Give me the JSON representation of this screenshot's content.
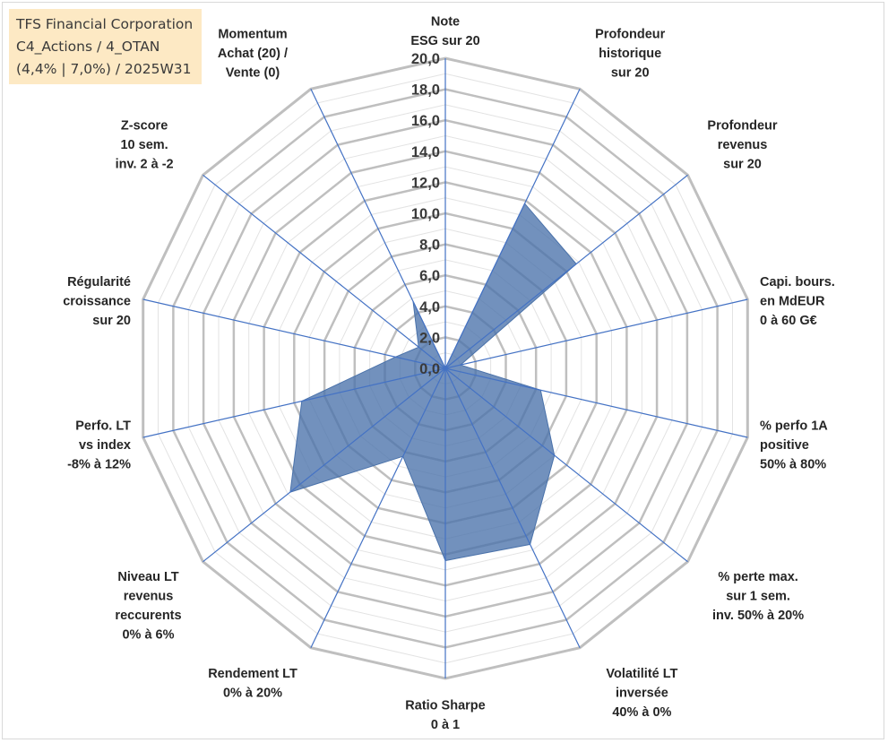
{
  "title_box": {
    "lines": [
      "TFS Financial Corporation",
      "C4_Actions / 4_OTAN",
      "(4,4% | 7,0%) / 2025W31"
    ]
  },
  "chart_data": {
    "type": "radar",
    "title": "",
    "rmin": 0,
    "rmax": 20,
    "step": 2,
    "tick_labels": [
      "0,0",
      "2,0",
      "4,0",
      "6,0",
      "8,0",
      "10,0",
      "12,0",
      "14,0",
      "16,0",
      "18,0",
      "20,0"
    ],
    "axes": [
      [
        "Note",
        "ESG sur 20"
      ],
      [
        "Profondeur",
        "historique",
        "sur 20"
      ],
      [
        "Profondeur",
        "revenus",
        "sur 20"
      ],
      [
        "Capi. bours.",
        "en MdEUR",
        "0 à 60 G€"
      ],
      [
        "% perfo 1A",
        "positive",
        "50% à 80%"
      ],
      [
        "% perte max.",
        "sur 1 sem.",
        "inv. 50% à 20%"
      ],
      [
        "Volatilité LT",
        "inversée",
        "40% à 0%"
      ],
      [
        "Ratio Sharpe",
        "0 à 1"
      ],
      [
        "Rendement LT",
        "0% à 20%"
      ],
      [
        "Niveau LT",
        "revenus",
        "reccurents",
        "0% à 6%"
      ],
      [
        "Perfo. LT",
        "vs index",
        "-8% à 12%"
      ],
      [
        "Régularité",
        "croissance",
        "sur 20"
      ],
      [
        "Z-score",
        "10 sem.",
        "inv. 2 à -2"
      ],
      [
        "Momentum",
        "Achat (20) /",
        "Vente (0)"
      ]
    ],
    "series": [
      {
        "values": [
          0,
          11.8,
          10.8,
          1.0,
          6.3,
          9.0,
          12.6,
          12.4,
          6.3,
          12.8,
          9.5,
          3.3,
          2.2,
          4.8
        ],
        "color": "#4a72aa"
      }
    ],
    "grid": true,
    "colors": {
      "fill": "#4a72aa",
      "axis_line": "#4472c4",
      "grid_major": "#bfbfbf",
      "grid_minor": "#e3e3e3"
    }
  }
}
